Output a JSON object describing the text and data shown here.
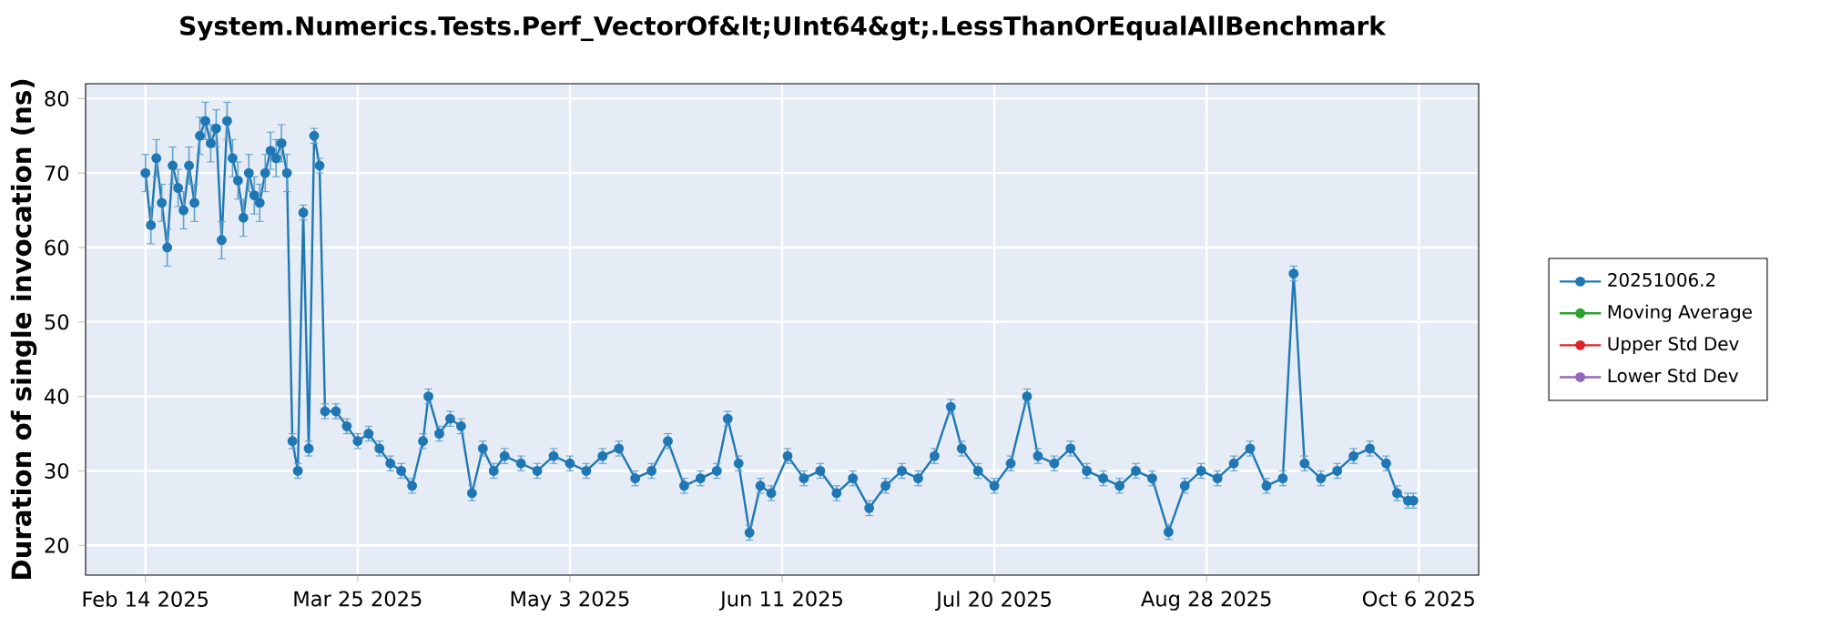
{
  "chart_data": {
    "type": "line",
    "title": "System.Numerics.Tests.Perf_VectorOf&lt;UInt64&gt;.LessThanOrEqualAllBenchmark",
    "ylabel": "Duration of single invocation (ns)",
    "x": [
      "2025-02-14",
      "2025-02-15",
      "2025-02-16",
      "2025-02-17",
      "2025-02-18",
      "2025-02-19",
      "2025-02-20",
      "2025-02-21",
      "2025-02-22",
      "2025-02-23",
      "2025-02-24",
      "2025-02-25",
      "2025-02-26",
      "2025-02-27",
      "2025-02-28",
      "2025-03-01",
      "2025-03-02",
      "2025-03-03",
      "2025-03-04",
      "2025-03-05",
      "2025-03-06",
      "2025-03-07",
      "2025-03-08",
      "2025-03-09",
      "2025-03-10",
      "2025-03-11",
      "2025-03-12",
      "2025-03-13",
      "2025-03-14",
      "2025-03-15",
      "2025-03-16",
      "2025-03-17",
      "2025-03-18",
      "2025-03-19",
      "2025-03-21",
      "2025-03-23",
      "2025-03-25",
      "2025-03-27",
      "2025-03-29",
      "2025-03-31",
      "2025-04-02",
      "2025-04-04",
      "2025-04-06",
      "2025-04-07",
      "2025-04-09",
      "2025-04-11",
      "2025-04-13",
      "2025-04-15",
      "2025-04-17",
      "2025-04-19",
      "2025-04-21",
      "2025-04-24",
      "2025-04-27",
      "2025-04-30",
      "2025-05-03",
      "2025-05-06",
      "2025-05-09",
      "2025-05-12",
      "2025-05-15",
      "2025-05-18",
      "2025-05-21",
      "2025-05-24",
      "2025-05-27",
      "2025-05-30",
      "2025-06-01",
      "2025-06-03",
      "2025-06-05",
      "2025-06-07",
      "2025-06-09",
      "2025-06-12",
      "2025-06-15",
      "2025-06-18",
      "2025-06-21",
      "2025-06-24",
      "2025-06-27",
      "2025-06-30",
      "2025-07-03",
      "2025-07-06",
      "2025-07-09",
      "2025-07-12",
      "2025-07-14",
      "2025-07-17",
      "2025-07-20",
      "2025-07-23",
      "2025-07-26",
      "2025-07-28",
      "2025-07-31",
      "2025-08-03",
      "2025-08-06",
      "2025-08-09",
      "2025-08-12",
      "2025-08-15",
      "2025-08-18",
      "2025-08-21",
      "2025-08-24",
      "2025-08-27",
      "2025-08-30",
      "2025-09-02",
      "2025-09-05",
      "2025-09-08",
      "2025-09-11",
      "2025-09-13",
      "2025-09-15",
      "2025-09-18",
      "2025-09-21",
      "2025-09-24",
      "2025-09-27",
      "2025-09-30",
      "2025-10-02",
      "2025-10-04",
      "2025-10-05"
    ],
    "series": [
      {
        "name": "20251006.2",
        "color": "#1f77b4",
        "values": [
          70,
          63,
          72,
          66,
          60,
          71,
          68,
          65,
          71,
          66,
          75,
          77,
          74,
          76,
          61,
          77,
          72,
          69,
          64,
          70,
          67,
          66,
          70,
          73,
          72,
          74,
          70,
          34,
          30,
          64.7,
          33,
          75,
          71,
          38,
          38,
          36,
          34,
          35,
          33,
          31,
          30,
          28,
          34,
          40,
          35,
          37,
          36,
          27,
          33,
          30,
          32,
          31,
          30,
          32,
          31,
          30,
          32,
          33,
          29,
          30,
          34,
          28,
          29,
          30,
          37,
          31,
          21.7,
          28,
          27,
          32,
          29,
          30,
          27,
          29,
          25,
          28,
          30,
          29,
          32,
          38.6,
          33,
          30,
          28,
          31,
          40,
          32,
          31,
          33,
          30,
          29,
          28,
          30,
          29,
          21.8,
          28,
          30,
          29,
          31,
          33,
          28,
          29,
          56.5,
          31,
          29,
          30,
          32,
          33,
          31,
          27,
          26,
          26
        ],
        "errors": [
          2.5,
          2.5,
          2.5,
          2.5,
          2.5,
          2.5,
          2.5,
          2.5,
          2.5,
          2.5,
          2.5,
          2.5,
          2.5,
          2.5,
          2.5,
          2.5,
          2.5,
          2.5,
          2.5,
          2.5,
          2.5,
          2.5,
          2.5,
          2.5,
          2.5,
          2.5,
          2.5,
          1,
          1,
          1,
          1,
          1,
          1,
          1,
          1,
          1,
          1,
          1,
          1,
          1,
          1,
          1,
          1,
          1,
          1,
          1,
          1,
          1,
          1,
          1,
          1,
          1,
          1,
          1,
          1,
          1,
          1,
          1,
          1,
          1,
          1,
          1,
          1,
          1,
          1,
          1,
          1,
          1,
          1,
          1,
          1,
          1,
          1,
          1,
          1,
          1,
          1,
          1,
          1,
          1,
          1,
          1,
          1,
          1,
          1,
          1,
          1,
          1,
          1,
          1,
          1,
          1,
          1,
          1,
          1,
          1,
          1,
          1,
          1,
          1,
          1,
          1,
          1,
          1,
          1,
          1,
          1,
          1,
          1,
          1,
          1
        ]
      },
      {
        "name": "Moving Average",
        "color": "#2ca02c",
        "values": [
          null,
          null,
          null,
          null,
          null,
          null,
          null,
          null,
          null,
          null,
          null,
          null,
          null,
          null,
          null,
          null,
          null,
          null,
          null,
          null,
          null,
          null,
          null,
          null,
          null,
          null,
          null,
          null,
          null,
          null,
          null,
          null,
          null,
          null,
          null,
          null,
          null,
          null,
          null,
          null,
          null,
          null,
          null,
          null,
          null,
          null,
          null,
          null,
          null,
          null,
          null,
          null,
          null,
          null,
          null,
          null,
          null,
          null,
          null,
          null,
          null,
          null,
          null,
          null,
          null,
          null,
          null,
          null,
          null,
          null,
          null,
          null,
          null,
          null,
          null,
          null,
          null,
          null,
          null,
          null,
          null,
          null,
          null,
          null,
          null,
          null,
          null,
          null,
          null,
          null,
          null,
          null,
          null,
          null,
          null,
          null,
          null,
          null,
          null,
          null,
          null,
          null,
          null,
          null,
          null,
          null,
          null,
          null,
          null,
          null,
          null
        ]
      },
      {
        "name": "Upper Std Dev",
        "color": "#d62728",
        "values": [
          null,
          null,
          null,
          null,
          null,
          null,
          null,
          null,
          null,
          null,
          null,
          null,
          null,
          null,
          null,
          null,
          null,
          null,
          null,
          null,
          null,
          null,
          null,
          null,
          null,
          null,
          null,
          null,
          null,
          null,
          null,
          null,
          null,
          null,
          null,
          null,
          null,
          null,
          null,
          null,
          null,
          null,
          null,
          null,
          null,
          null,
          null,
          null,
          null,
          null,
          null,
          null,
          null,
          null,
          null,
          null,
          null,
          null,
          null,
          null,
          null,
          null,
          null,
          null,
          null,
          null,
          null,
          null,
          null,
          null,
          null,
          null,
          null,
          null,
          null,
          null,
          null,
          null,
          null,
          null,
          null,
          null,
          null,
          null,
          null,
          null,
          null,
          null,
          null,
          null,
          null,
          null,
          null,
          null,
          null,
          null,
          null,
          null,
          null,
          null,
          null,
          null,
          null,
          null,
          null,
          null,
          null,
          null,
          null,
          null,
          null
        ]
      },
      {
        "name": "Lower Std Dev",
        "color": "#9467bd",
        "values": [
          null,
          null,
          null,
          null,
          null,
          null,
          null,
          null,
          null,
          null,
          null,
          null,
          null,
          null,
          null,
          null,
          null,
          null,
          null,
          null,
          null,
          null,
          null,
          null,
          null,
          null,
          null,
          null,
          null,
          null,
          null,
          null,
          null,
          null,
          null,
          null,
          null,
          null,
          null,
          null,
          null,
          null,
          null,
          null,
          null,
          null,
          null,
          null,
          null,
          null,
          null,
          null,
          null,
          null,
          null,
          null,
          null,
          null,
          null,
          null,
          null,
          null,
          null,
          null,
          null,
          null,
          null,
          null,
          null,
          null,
          null,
          null,
          null,
          null,
          null,
          null,
          null,
          null,
          null,
          null,
          null,
          null,
          null,
          null,
          null,
          null,
          null,
          null,
          null,
          null,
          null,
          null,
          null,
          null,
          null,
          null,
          null,
          null,
          null,
          null,
          null,
          null,
          null,
          null,
          null,
          null,
          null,
          null,
          null,
          null,
          null
        ]
      }
    ],
    "xlim": [
      "2025-02-03",
      "2025-10-17"
    ],
    "xticks": [
      {
        "value": "2025-02-14",
        "label": "Feb 14 2025"
      },
      {
        "value": "2025-03-25",
        "label": "Mar 25 2025"
      },
      {
        "value": "2025-05-03",
        "label": "May 3 2025"
      },
      {
        "value": "2025-06-11",
        "label": "Jun 11 2025"
      },
      {
        "value": "2025-07-20",
        "label": "Jul 20 2025"
      },
      {
        "value": "2025-08-28",
        "label": "Aug 28 2025"
      },
      {
        "value": "2025-10-06",
        "label": "Oct 6 2025"
      }
    ],
    "ylim": [
      16,
      82
    ],
    "yticks": [
      20,
      30,
      40,
      50,
      60,
      70,
      80
    ],
    "grid": true,
    "legend": "right",
    "marker": "circle",
    "line_style": "solid"
  }
}
